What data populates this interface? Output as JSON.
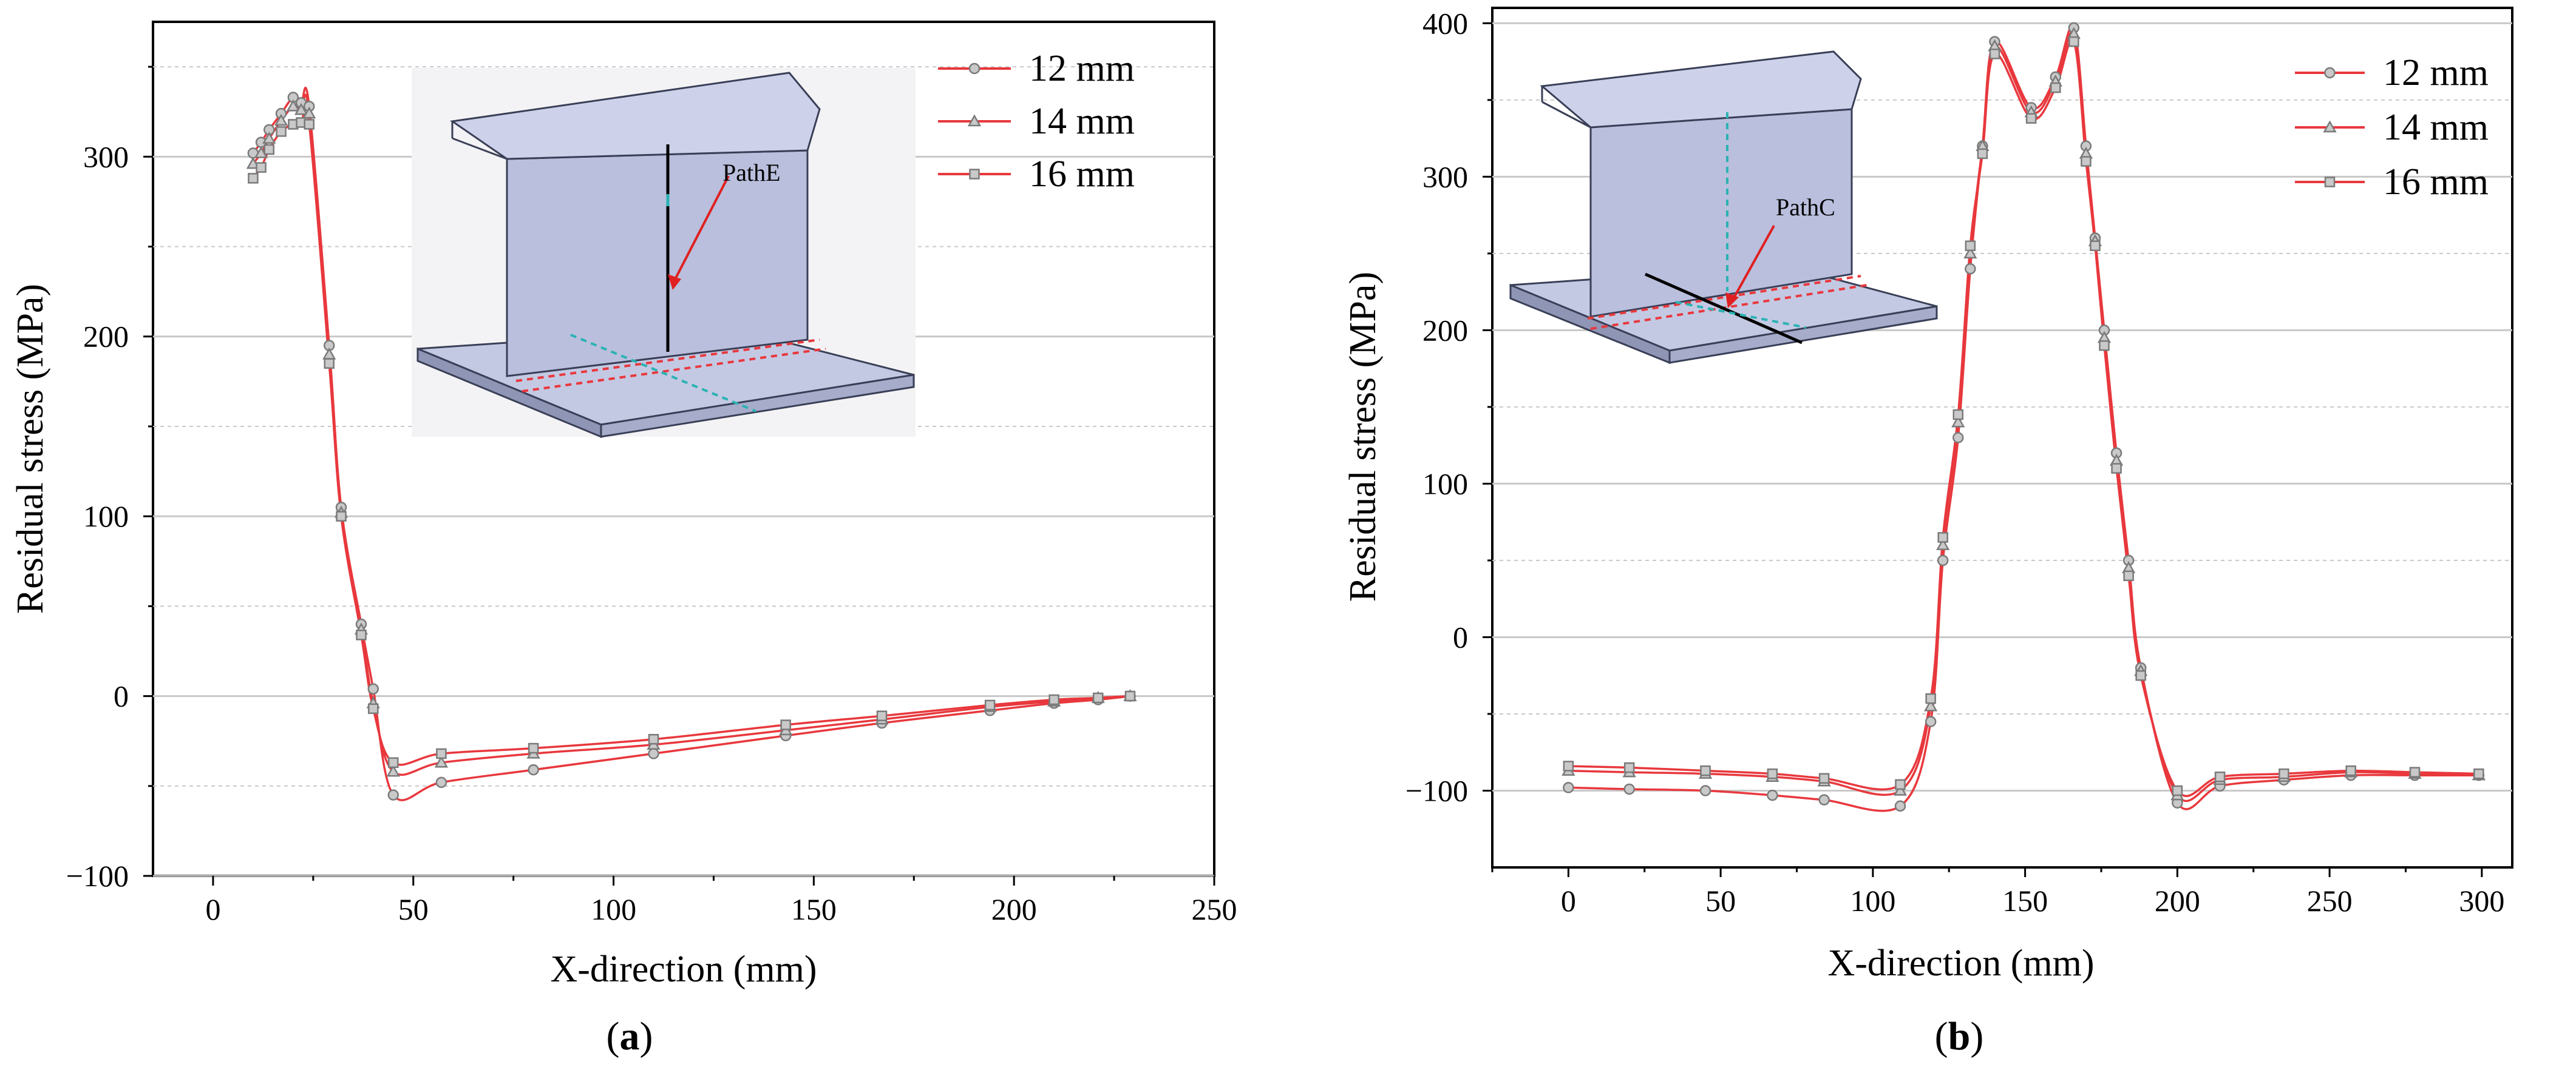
{
  "colors": {
    "series": "#e8383d",
    "marker_fill": "#c9c9c9",
    "marker_stroke": "#7a7a7a",
    "grid": "#c8c8c8",
    "plate_face": "#c4c9e3",
    "plate_edge": "#3a3f57"
  },
  "panels": [
    {
      "id": "a",
      "label_prefix": "(",
      "label_letter": "a",
      "label_suffix": ")",
      "inset_path_label": "PathE",
      "chart_data": {
        "type": "line",
        "title": "",
        "xlabel": "X-direction (mm)",
        "ylabel": "Residual stress (MPa)",
        "xlim": [
          -15,
          250
        ],
        "ylim": [
          -100,
          375
        ],
        "xticks": [
          0,
          50,
          100,
          150,
          200,
          250
        ],
        "yticks": [
          -100,
          0,
          100,
          200,
          300
        ],
        "xtick_labels": [
          "0",
          "50",
          "100",
          "150",
          "200",
          "250"
        ],
        "ytick_labels": [
          "−100",
          "0",
          "100",
          "200",
          "300"
        ],
        "legend_position": "top-right",
        "series": [
          {
            "name": "12 mm",
            "marker": "circle",
            "x": [
              10,
              12,
              14,
              17,
              20,
              22,
              24,
              29,
              32,
              37,
              40,
              45,
              57,
              80,
              110,
              143,
              167,
              194,
              210,
              221,
              229
            ],
            "y": [
              302,
              308,
              315,
              324,
              333,
              330,
              328,
              195,
              105,
              40,
              4,
              -55,
              -48,
              -41,
              -32,
              -22,
              -15,
              -8,
              -4,
              -2,
              0
            ]
          },
          {
            "name": "14 mm",
            "marker": "triangle",
            "x": [
              10,
              12,
              14,
              17,
              20,
              22,
              24,
              29,
              32,
              37,
              40,
              45,
              57,
              80,
              110,
              143,
              167,
              194,
              210,
              221,
              229
            ],
            "y": [
              296,
              302,
              310,
              320,
              328,
              326,
              324,
              190,
              102,
              37,
              -4,
              -42,
              -37,
              -32,
              -27,
              -19,
              -13,
              -6,
              -3,
              -1,
              0
            ]
          },
          {
            "name": "16 mm",
            "marker": "square",
            "x": [
              10,
              12,
              14,
              17,
              20,
              22,
              24,
              29,
              32,
              37,
              40,
              45,
              57,
              80,
              110,
              143,
              167,
              194,
              210,
              221,
              229
            ],
            "y": [
              288,
              294,
              304,
              314,
              318,
              319,
              318,
              185,
              100,
              34,
              -7,
              -37,
              -32,
              -29,
              -24,
              -16,
              -11,
              -5,
              -2,
              -1,
              0
            ]
          }
        ]
      }
    },
    {
      "id": "b",
      "label_prefix": "(",
      "label_letter": "b",
      "label_suffix": ")",
      "inset_path_label": "PathC",
      "chart_data": {
        "type": "line",
        "title": "",
        "xlabel": "X-direction (mm)",
        "ylabel": "Residual stress (MPa)",
        "xlim": [
          -25,
          310
        ],
        "ylim": [
          -150,
          410
        ],
        "xticks": [
          0,
          50,
          100,
          150,
          200,
          250,
          300
        ],
        "yticks": [
          -100,
          0,
          100,
          200,
          300,
          400
        ],
        "xtick_labels": [
          "0",
          "50",
          "100",
          "150",
          "200",
          "250",
          "300"
        ],
        "ytick_labels": [
          "−100",
          "0",
          "100",
          "200",
          "300",
          "400"
        ],
        "legend_position": "top-right",
        "series": [
          {
            "name": "12 mm",
            "marker": "circle",
            "x": [
              0,
              20,
              45,
              67,
              84,
              109,
              119,
              123,
              128,
              132,
              136,
              140,
              152,
              160,
              166,
              170,
              173,
              176,
              180,
              184,
              188,
              200,
              214,
              235,
              257,
              278,
              299
            ],
            "y": [
              -98,
              -99,
              -100,
              -103,
              -106,
              -110,
              -55,
              50,
              130,
              240,
              320,
              388,
              345,
              365,
              397,
              320,
              260,
              200,
              120,
              50,
              -20,
              -108,
              -97,
              -93,
              -90,
              -90,
              -90
            ]
          },
          {
            "name": "14 mm",
            "marker": "triangle",
            "x": [
              0,
              20,
              45,
              67,
              84,
              109,
              119,
              123,
              128,
              132,
              136,
              140,
              152,
              160,
              166,
              170,
              173,
              176,
              180,
              184,
              188,
              200,
              214,
              235,
              257,
              278,
              299
            ],
            "y": [
              -87,
              -88,
              -89,
              -91,
              -94,
              -100,
              -45,
              60,
              140,
              250,
              320,
              385,
              342,
              362,
              393,
              315,
              258,
              195,
              115,
              45,
              -22,
              -103,
              -93,
              -91,
              -88,
              -89,
              -90
            ]
          },
          {
            "name": "16 mm",
            "marker": "square",
            "x": [
              0,
              20,
              45,
              67,
              84,
              109,
              119,
              123,
              128,
              132,
              136,
              140,
              152,
              160,
              166,
              170,
              173,
              176,
              180,
              184,
              188,
              200,
              214,
              235,
              257,
              278,
              299
            ],
            "y": [
              -84,
              -85,
              -87,
              -89,
              -92,
              -96,
              -40,
              65,
              145,
              255,
              315,
              380,
              338,
              358,
              388,
              310,
              255,
              190,
              110,
              40,
              -25,
              -100,
              -91,
              -89,
              -87,
              -88,
              -89
            ]
          }
        ]
      }
    }
  ]
}
